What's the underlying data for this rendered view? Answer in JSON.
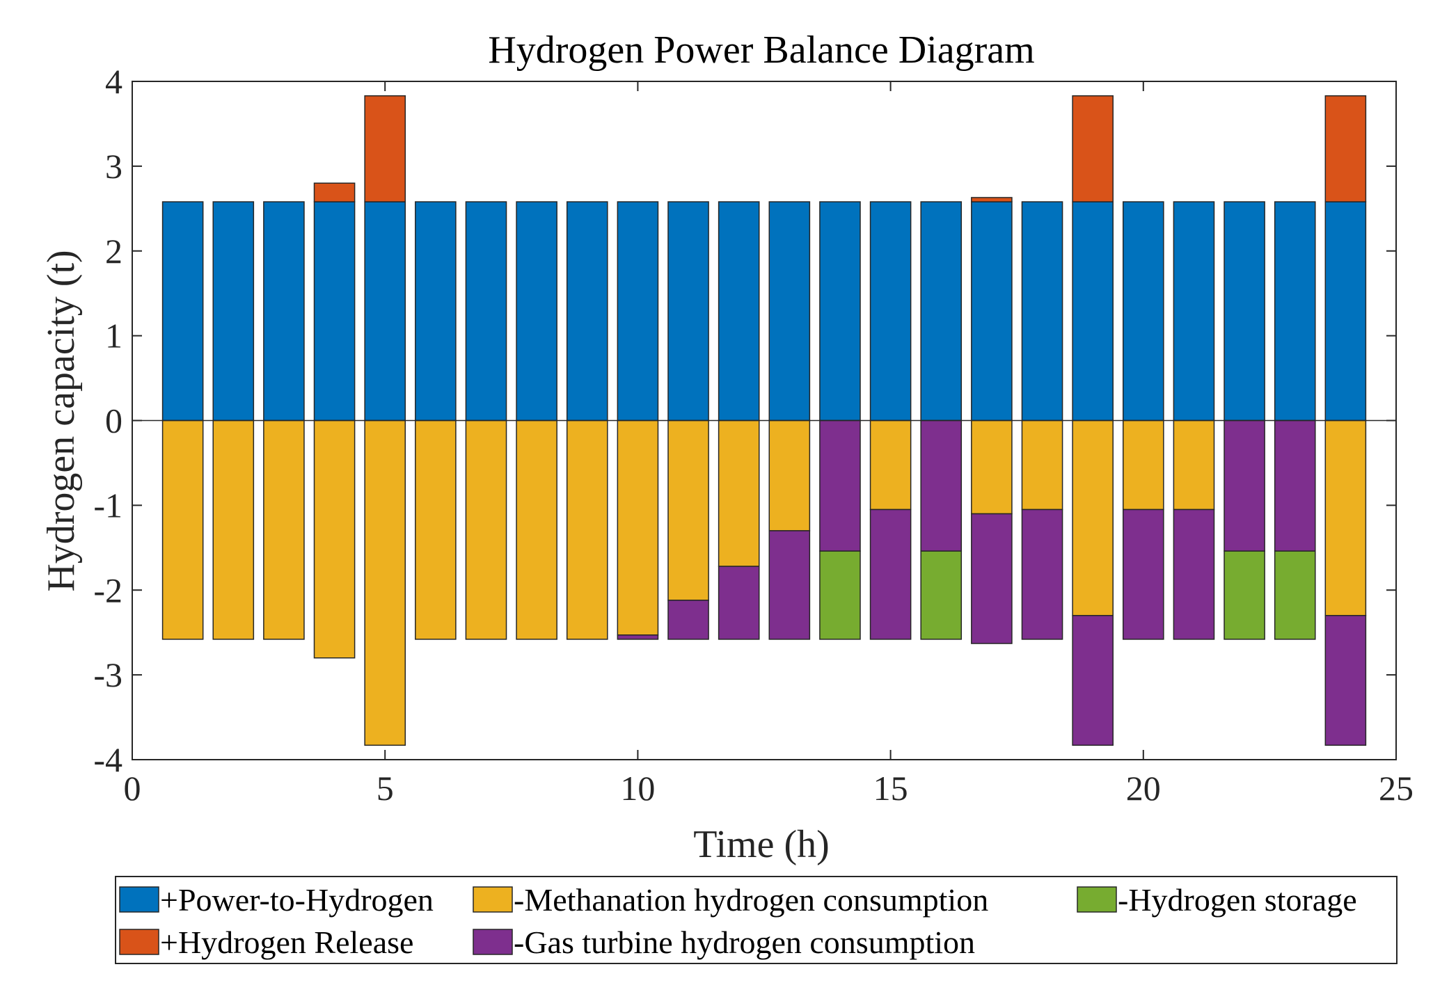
{
  "chart_data": {
    "type": "bar",
    "stacked": true,
    "title": "Hydrogen Power Balance Diagram",
    "xlabel": "Time (h)",
    "ylabel": "Hydrogen capacity (t)",
    "xlim": [
      0,
      25
    ],
    "ylim": [
      -4,
      4
    ],
    "xticks": [
      0,
      5,
      10,
      15,
      20,
      25
    ],
    "yticks": [
      -4,
      -3,
      -2,
      -1,
      0,
      1,
      2,
      3,
      4
    ],
    "grid": false,
    "legend_position": "bottom",
    "x": [
      1,
      2,
      3,
      4,
      5,
      6,
      7,
      8,
      9,
      10,
      11,
      12,
      13,
      14,
      15,
      16,
      17,
      18,
      19,
      20,
      21,
      22,
      23,
      24
    ],
    "series": [
      {
        "name": "+Power-to-Hydrogen",
        "color": "#0072BD",
        "values": [
          2.58,
          2.58,
          2.58,
          2.58,
          2.58,
          2.58,
          2.58,
          2.58,
          2.58,
          2.58,
          2.58,
          2.58,
          2.58,
          2.58,
          2.58,
          2.58,
          2.58,
          2.58,
          2.58,
          2.58,
          2.58,
          2.58,
          2.58,
          2.58
        ]
      },
      {
        "name": "+Hydrogen Release",
        "color": "#D95319",
        "values": [
          0,
          0,
          0,
          0.22,
          1.25,
          0,
          0,
          0,
          0,
          0,
          0,
          0,
          0,
          0,
          0,
          0,
          0.05,
          0,
          1.25,
          0,
          0,
          0,
          0,
          1.25
        ]
      },
      {
        "name": "-Methanation hydrogen consumption",
        "color": "#EDB120",
        "values": [
          -2.58,
          -2.58,
          -2.58,
          -2.8,
          -3.83,
          -2.58,
          -2.58,
          -2.58,
          -2.58,
          -2.53,
          -2.12,
          -1.72,
          -1.3,
          0,
          -1.05,
          0,
          -1.1,
          -1.05,
          -2.3,
          -1.05,
          -1.05,
          0,
          0,
          -2.3
        ]
      },
      {
        "name": "-Gas turbine hydrogen consumption",
        "color": "#7E2F8E",
        "values": [
          0,
          0,
          0,
          0,
          0,
          0,
          0,
          0,
          0,
          -0.05,
          -0.46,
          -0.86,
          -1.28,
          -1.54,
          -1.53,
          -1.54,
          -1.53,
          -1.53,
          -1.53,
          -1.53,
          -1.53,
          -1.54,
          -1.54,
          -1.53
        ]
      },
      {
        "name": "-Hydrogen storage",
        "color": "#77AC30",
        "values": [
          0,
          0,
          0,
          0,
          0,
          0,
          0,
          0,
          0,
          0,
          0,
          0,
          0,
          -1.04,
          0,
          -1.04,
          0,
          0,
          0,
          0,
          0,
          -1.04,
          -1.04,
          0
        ]
      }
    ],
    "legend_rows": [
      [
        "+Power-to-Hydrogen",
        "-Methanation hydrogen consumption",
        "-Hydrogen storage"
      ],
      [
        "+Hydrogen Release",
        "-Gas turbine hydrogen consumption"
      ]
    ]
  }
}
